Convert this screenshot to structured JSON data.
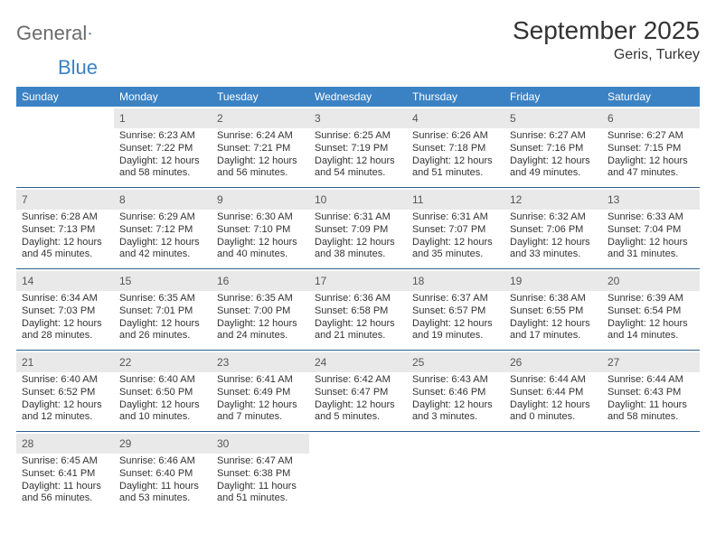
{
  "logo": {
    "text1": "General",
    "text2": "Blue"
  },
  "title": "September 2025",
  "location": "Geris, Turkey",
  "day_headers": [
    "Sunday",
    "Monday",
    "Tuesday",
    "Wednesday",
    "Thursday",
    "Friday",
    "Saturday"
  ],
  "colors": {
    "header_bg": "#3b82c4",
    "header_text": "#ffffff",
    "daynum_bg": "#e9e9e9",
    "rule": "#2f5f8a",
    "body_text": "#333333",
    "logo_gray": "#6b6b6b"
  },
  "weeks": [
    [
      null,
      {
        "n": "1",
        "sr": "Sunrise: 6:23 AM",
        "ss": "Sunset: 7:22 PM",
        "d1": "Daylight: 12 hours",
        "d2": "and 58 minutes."
      },
      {
        "n": "2",
        "sr": "Sunrise: 6:24 AM",
        "ss": "Sunset: 7:21 PM",
        "d1": "Daylight: 12 hours",
        "d2": "and 56 minutes."
      },
      {
        "n": "3",
        "sr": "Sunrise: 6:25 AM",
        "ss": "Sunset: 7:19 PM",
        "d1": "Daylight: 12 hours",
        "d2": "and 54 minutes."
      },
      {
        "n": "4",
        "sr": "Sunrise: 6:26 AM",
        "ss": "Sunset: 7:18 PM",
        "d1": "Daylight: 12 hours",
        "d2": "and 51 minutes."
      },
      {
        "n": "5",
        "sr": "Sunrise: 6:27 AM",
        "ss": "Sunset: 7:16 PM",
        "d1": "Daylight: 12 hours",
        "d2": "and 49 minutes."
      },
      {
        "n": "6",
        "sr": "Sunrise: 6:27 AM",
        "ss": "Sunset: 7:15 PM",
        "d1": "Daylight: 12 hours",
        "d2": "and 47 minutes."
      }
    ],
    [
      {
        "n": "7",
        "sr": "Sunrise: 6:28 AM",
        "ss": "Sunset: 7:13 PM",
        "d1": "Daylight: 12 hours",
        "d2": "and 45 minutes."
      },
      {
        "n": "8",
        "sr": "Sunrise: 6:29 AM",
        "ss": "Sunset: 7:12 PM",
        "d1": "Daylight: 12 hours",
        "d2": "and 42 minutes."
      },
      {
        "n": "9",
        "sr": "Sunrise: 6:30 AM",
        "ss": "Sunset: 7:10 PM",
        "d1": "Daylight: 12 hours",
        "d2": "and 40 minutes."
      },
      {
        "n": "10",
        "sr": "Sunrise: 6:31 AM",
        "ss": "Sunset: 7:09 PM",
        "d1": "Daylight: 12 hours",
        "d2": "and 38 minutes."
      },
      {
        "n": "11",
        "sr": "Sunrise: 6:31 AM",
        "ss": "Sunset: 7:07 PM",
        "d1": "Daylight: 12 hours",
        "d2": "and 35 minutes."
      },
      {
        "n": "12",
        "sr": "Sunrise: 6:32 AM",
        "ss": "Sunset: 7:06 PM",
        "d1": "Daylight: 12 hours",
        "d2": "and 33 minutes."
      },
      {
        "n": "13",
        "sr": "Sunrise: 6:33 AM",
        "ss": "Sunset: 7:04 PM",
        "d1": "Daylight: 12 hours",
        "d2": "and 31 minutes."
      }
    ],
    [
      {
        "n": "14",
        "sr": "Sunrise: 6:34 AM",
        "ss": "Sunset: 7:03 PM",
        "d1": "Daylight: 12 hours",
        "d2": "and 28 minutes."
      },
      {
        "n": "15",
        "sr": "Sunrise: 6:35 AM",
        "ss": "Sunset: 7:01 PM",
        "d1": "Daylight: 12 hours",
        "d2": "and 26 minutes."
      },
      {
        "n": "16",
        "sr": "Sunrise: 6:35 AM",
        "ss": "Sunset: 7:00 PM",
        "d1": "Daylight: 12 hours",
        "d2": "and 24 minutes."
      },
      {
        "n": "17",
        "sr": "Sunrise: 6:36 AM",
        "ss": "Sunset: 6:58 PM",
        "d1": "Daylight: 12 hours",
        "d2": "and 21 minutes."
      },
      {
        "n": "18",
        "sr": "Sunrise: 6:37 AM",
        "ss": "Sunset: 6:57 PM",
        "d1": "Daylight: 12 hours",
        "d2": "and 19 minutes."
      },
      {
        "n": "19",
        "sr": "Sunrise: 6:38 AM",
        "ss": "Sunset: 6:55 PM",
        "d1": "Daylight: 12 hours",
        "d2": "and 17 minutes."
      },
      {
        "n": "20",
        "sr": "Sunrise: 6:39 AM",
        "ss": "Sunset: 6:54 PM",
        "d1": "Daylight: 12 hours",
        "d2": "and 14 minutes."
      }
    ],
    [
      {
        "n": "21",
        "sr": "Sunrise: 6:40 AM",
        "ss": "Sunset: 6:52 PM",
        "d1": "Daylight: 12 hours",
        "d2": "and 12 minutes."
      },
      {
        "n": "22",
        "sr": "Sunrise: 6:40 AM",
        "ss": "Sunset: 6:50 PM",
        "d1": "Daylight: 12 hours",
        "d2": "and 10 minutes."
      },
      {
        "n": "23",
        "sr": "Sunrise: 6:41 AM",
        "ss": "Sunset: 6:49 PM",
        "d1": "Daylight: 12 hours",
        "d2": "and 7 minutes."
      },
      {
        "n": "24",
        "sr": "Sunrise: 6:42 AM",
        "ss": "Sunset: 6:47 PM",
        "d1": "Daylight: 12 hours",
        "d2": "and 5 minutes."
      },
      {
        "n": "25",
        "sr": "Sunrise: 6:43 AM",
        "ss": "Sunset: 6:46 PM",
        "d1": "Daylight: 12 hours",
        "d2": "and 3 minutes."
      },
      {
        "n": "26",
        "sr": "Sunrise: 6:44 AM",
        "ss": "Sunset: 6:44 PM",
        "d1": "Daylight: 12 hours",
        "d2": "and 0 minutes."
      },
      {
        "n": "27",
        "sr": "Sunrise: 6:44 AM",
        "ss": "Sunset: 6:43 PM",
        "d1": "Daylight: 11 hours",
        "d2": "and 58 minutes."
      }
    ],
    [
      {
        "n": "28",
        "sr": "Sunrise: 6:45 AM",
        "ss": "Sunset: 6:41 PM",
        "d1": "Daylight: 11 hours",
        "d2": "and 56 minutes."
      },
      {
        "n": "29",
        "sr": "Sunrise: 6:46 AM",
        "ss": "Sunset: 6:40 PM",
        "d1": "Daylight: 11 hours",
        "d2": "and 53 minutes."
      },
      {
        "n": "30",
        "sr": "Sunrise: 6:47 AM",
        "ss": "Sunset: 6:38 PM",
        "d1": "Daylight: 11 hours",
        "d2": "and 51 minutes."
      },
      null,
      null,
      null,
      null
    ]
  ]
}
